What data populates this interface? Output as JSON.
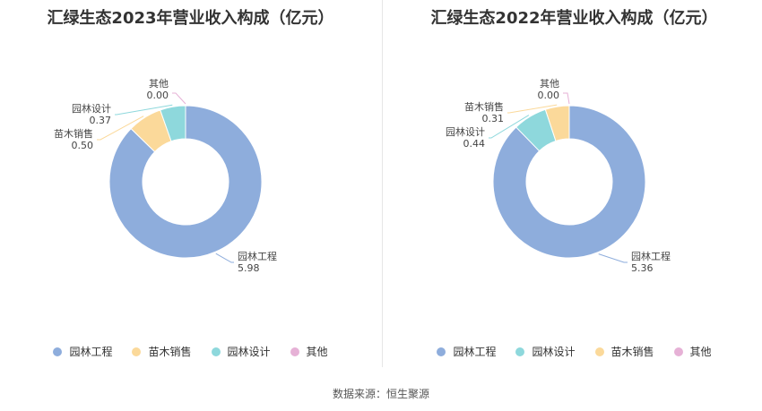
{
  "source": "数据来源：恒生聚源",
  "colors": {
    "园林工程": "#8eaddc",
    "苗木销售": "#fbd99a",
    "园林设计": "#8ed8dc",
    "其他": "#e6b1d6"
  },
  "chart_data": [
    {
      "type": "pie",
      "title": "汇绿生态2023年营业收入构成（亿元）",
      "legend_position": "bottom",
      "slices": [
        {
          "name": "园林工程",
          "value": 5.98,
          "label": "5.98"
        },
        {
          "name": "苗木销售",
          "value": 0.5,
          "label": "0.50"
        },
        {
          "name": "园林设计",
          "value": 0.37,
          "label": "0.37"
        },
        {
          "name": "其他",
          "value": 0.0,
          "label": "0.00"
        }
      ],
      "legend": [
        "园林工程",
        "苗木销售",
        "园林设计",
        "其他"
      ]
    },
    {
      "type": "pie",
      "title": "汇绿生态2022年营业收入构成（亿元）",
      "legend_position": "bottom",
      "slices": [
        {
          "name": "园林工程",
          "value": 5.36,
          "label": "5.36"
        },
        {
          "name": "园林设计",
          "value": 0.44,
          "label": "0.44"
        },
        {
          "name": "苗木销售",
          "value": 0.31,
          "label": "0.31"
        },
        {
          "name": "其他",
          "value": 0.0,
          "label": "0.00"
        }
      ],
      "legend": [
        "园林工程",
        "园林设计",
        "苗木销售",
        "其他"
      ]
    }
  ]
}
